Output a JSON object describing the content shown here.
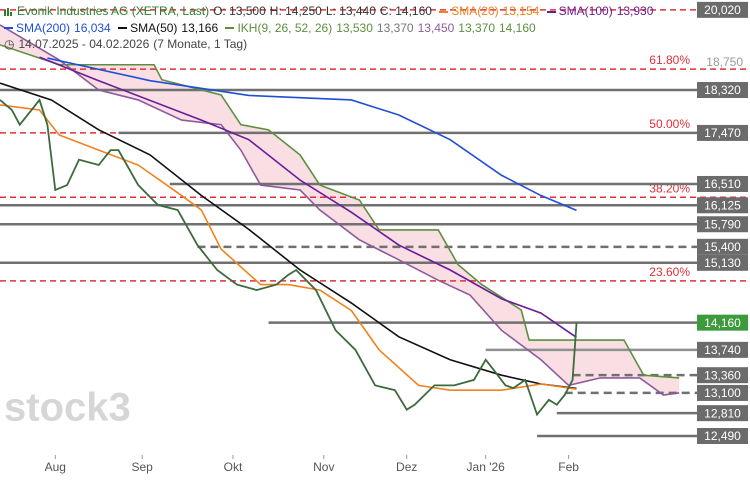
{
  "chart_data": {
    "type": "line",
    "header": {
      "symbol": "Evonik Industries AG (XETRA, Last)",
      "ohlc": [
        "O: 13,500",
        "H: 14,250",
        "L: 13,440",
        "C: 14,160"
      ],
      "period": "14.07.2025 - 04.02.2026",
      "duration": "(7 Monate, 1 Tag)"
    },
    "ikh": {
      "name": "IKH(9, 26, 52, 26)",
      "labels": [
        "13,530",
        "13,370",
        "13,450",
        "13,370",
        "14,160"
      ],
      "colors": [
        "#5f8f3e",
        "#777777",
        "#8e5a9e",
        "#5f8f3e",
        "#5f8f3e"
      ]
    },
    "watermark": "stock3",
    "xlim": [
      0,
      176
    ],
    "xticks": [
      {
        "value": 14,
        "label": "Aug"
      },
      {
        "value": 36,
        "label": "Sep"
      },
      {
        "value": 59,
        "label": "Okt"
      },
      {
        "value": 82,
        "label": "Nov"
      },
      {
        "value": 103,
        "label": "Dez"
      },
      {
        "value": 123,
        "label": "Jan '26"
      },
      {
        "value": 144,
        "label": "Feb"
      }
    ],
    "ylim": [
      12.23,
      20.24
    ],
    "log_y": true,
    "cloud_color": "#f7d3d9",
    "series": [
      {
        "color": "#3d6b3d",
        "x": [
          0,
          3,
          5,
          8,
          10,
          12,
          14,
          17,
          20,
          25,
          28,
          30,
          35,
          40,
          45,
          50,
          55,
          60,
          65,
          70,
          73,
          75,
          80,
          85,
          90,
          95,
          100,
          103,
          105,
          110,
          115,
          120,
          123,
          125,
          128,
          130,
          133,
          136,
          139,
          141,
          143,
          145,
          146
        ],
        "values": [
          18.12,
          17.92,
          17.63,
          17.92,
          18.12,
          17.63,
          16.4,
          16.49,
          16.96,
          16.86,
          17.14,
          17.14,
          16.49,
          16.13,
          16.04,
          15.43,
          15.01,
          14.77,
          14.68,
          14.77,
          14.93,
          15.01,
          14.68,
          14.04,
          13.74,
          13.21,
          13.14,
          12.86,
          12.93,
          13.21,
          13.21,
          13.29,
          13.59,
          13.44,
          13.21,
          13.17,
          13.29,
          12.79,
          13.0,
          12.93,
          13.07,
          13.29,
          14.16
        ]
      },
      {
        "name": "SMA(20)",
        "last_label": "13,154",
        "color": "#f0821e",
        "x": [
          0,
          10,
          15,
          25,
          35,
          46,
          51,
          56,
          66,
          73,
          81,
          89,
          96,
          106,
          114,
          127,
          137,
          146
        ],
        "values": [
          18.02,
          17.92,
          17.43,
          17.14,
          16.86,
          16.3,
          16.04,
          15.36,
          14.77,
          14.77,
          14.68,
          14.35,
          13.74,
          13.21,
          13.14,
          13.14,
          13.23,
          13.154
        ]
      },
      {
        "name": "SMA(100)",
        "last_label": "13,930",
        "color": "#6a1b9a",
        "x": [
          10,
          25,
          51,
          63,
          76,
          89,
          101,
          114,
          127,
          137,
          146
        ],
        "values": [
          19.0,
          18.51,
          17.72,
          17.34,
          16.58,
          16.0,
          15.43,
          15.01,
          14.54,
          14.31,
          13.93
        ]
      },
      {
        "name": "SMA(200)",
        "last_label": "16,034",
        "color": "#1f4fd6",
        "x": [
          12,
          38,
          63,
          89,
          101,
          114,
          127,
          137,
          146
        ],
        "values": [
          18.98,
          18.51,
          18.21,
          18.12,
          17.82,
          17.34,
          16.67,
          16.3,
          16.034
        ]
      },
      {
        "name": "SMA(50)",
        "last_label": "13,166",
        "color": "#111111",
        "x": [
          0,
          13,
          25,
          38,
          51,
          63,
          76,
          89,
          101,
          114,
          127,
          137,
          146
        ],
        "values": [
          18.46,
          18.12,
          17.53,
          17.05,
          16.3,
          15.7,
          15.01,
          14.47,
          13.94,
          13.59,
          13.36,
          13.23,
          13.166
        ]
      },
      {
        "color": "#5f8f3e",
        "x": [
          0,
          15,
          39,
          41,
          56,
          61,
          68,
          76,
          81,
          91,
          96,
          111,
          116,
          122,
          132,
          134,
          158,
          163,
          172
        ],
        "values": [
          19.26,
          18.84,
          18.84,
          18.53,
          18.22,
          17.63,
          17.53,
          17.05,
          16.49,
          16.22,
          15.69,
          15.69,
          15.1,
          14.77,
          14.36,
          13.89,
          13.89,
          13.36,
          13.32
        ]
      },
      {
        "color": "#8e5a9e",
        "x": [
          0,
          15,
          25,
          35,
          46,
          56,
          61,
          66,
          76,
          81,
          91,
          101,
          111,
          119,
          127,
          137,
          144,
          152,
          162,
          168,
          172
        ],
        "values": [
          19.69,
          18.94,
          18.32,
          18.12,
          17.72,
          17.63,
          17.14,
          16.49,
          16.4,
          16.04,
          15.52,
          15.18,
          14.84,
          14.6,
          14.04,
          13.59,
          13.21,
          13.32,
          13.32,
          13.07,
          13.1
        ]
      }
    ],
    "levels": [
      {
        "value": 20.02,
        "label": "20,020",
        "start": 0,
        "style": "dashed",
        "line_color": "#e0303a",
        "label_color": "#6b6b6b"
      },
      {
        "value": 18.32,
        "label": "18,320",
        "start": 0,
        "style": "solid",
        "line_color": "#707070",
        "label_color": "#6b6b6b"
      },
      {
        "value": 17.47,
        "label": "17,470",
        "start": 30,
        "style": "solid",
        "line_color": "#707070",
        "label_color": "#6b6b6b"
      },
      {
        "value": 16.51,
        "label": "16,510",
        "start": 43,
        "style": "solid",
        "line_color": "#707070",
        "label_color": "#6b6b6b"
      },
      {
        "value": 16.125,
        "label": "16,125",
        "start": 0,
        "style": "solid",
        "line_color": "#707070",
        "label_color": "#6b6b6b"
      },
      {
        "value": 15.79,
        "label": "15,790",
        "start": 0,
        "style": "solid",
        "line_color": "#707070",
        "label_color": "#6b6b6b"
      },
      {
        "value": 15.4,
        "label": "15,400",
        "start": 50,
        "style": "dashed",
        "line_color": "#707070",
        "label_color": "#6b6b6b"
      },
      {
        "value": 15.13,
        "label": "15,130",
        "start": 0,
        "style": "solid",
        "line_color": "#707070",
        "label_color": "#6b6b6b"
      },
      {
        "value": 14.16,
        "label": "14,160",
        "start": 68,
        "style": "solid",
        "line_color": "#707070",
        "label_color": "#3d9a3d"
      },
      {
        "value": 13.74,
        "label": "13,740",
        "start": 123,
        "style": "solid",
        "line_color": "#909090",
        "label_color": "#6b6b6b"
      },
      {
        "value": 13.36,
        "label": "13,360",
        "start": 145,
        "style": "dashed",
        "line_color": "#707070",
        "label_color": "#6b6b6b"
      },
      {
        "value": 13.1,
        "label": "13,100",
        "start": 143,
        "style": "dashed",
        "line_color": "#707070",
        "label_color": "#6b6b6b"
      },
      {
        "value": 12.81,
        "label": "12,810",
        "start": 141,
        "style": "solid",
        "line_color": "#707070",
        "label_color": "#6b6b6b"
      },
      {
        "value": 12.49,
        "label": "12,490",
        "start": 136,
        "style": "solid",
        "line_color": "#707070",
        "label_color": "#6b6b6b"
      }
    ],
    "fib_levels": [
      {
        "value": 18.75,
        "label": "61.80%",
        "price_label": "18,750"
      },
      {
        "value": 17.47,
        "label": "50.00%"
      },
      {
        "value": 16.27,
        "label": "38.20%"
      },
      {
        "value": 14.83,
        "label": "23.60%"
      }
    ],
    "fib_color": "#e0303a"
  }
}
